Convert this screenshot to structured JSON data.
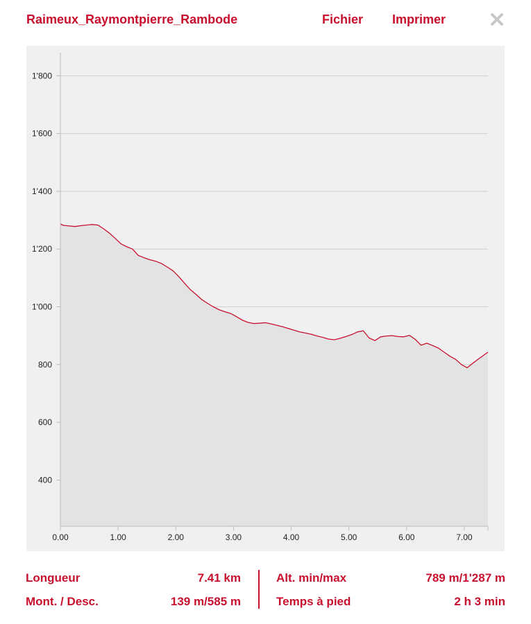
{
  "header": {
    "title": "Raimeux_Raymontpierre_Rambode",
    "menu_file": "Fichier",
    "menu_print": "Imprimer",
    "close_icon": "close-icon"
  },
  "colors": {
    "accent": "#c8102e",
    "panel_bg": "#f0f0f0",
    "area_fill": "#e3e3e3",
    "grid": "#d0d0d0"
  },
  "chart_data": {
    "type": "area",
    "title": "",
    "xlabel": "",
    "ylabel": "",
    "xlim": [
      0,
      7.41
    ],
    "ylim": [
      240,
      1880
    ],
    "grid": true,
    "x_ticks": [
      0,
      1,
      2,
      3,
      4,
      5,
      6,
      7
    ],
    "x_tick_labels": [
      "0.00",
      "1.00",
      "2.00",
      "3.00",
      "4.00",
      "5.00",
      "6.00",
      "7.00"
    ],
    "y_ticks": [
      400,
      600,
      800,
      1000,
      1200,
      1400,
      1600,
      1800
    ],
    "y_tick_labels": [
      "400",
      "600",
      "800",
      "1'000",
      "1'200",
      "1'400",
      "1'600",
      "1'800"
    ],
    "series": [
      {
        "x": [
          0.0,
          0.05,
          0.15,
          0.25,
          0.35,
          0.45,
          0.55,
          0.65,
          0.75,
          0.85,
          0.95,
          1.05,
          1.15,
          1.25,
          1.35,
          1.45,
          1.55,
          1.65,
          1.75,
          1.85,
          1.95,
          2.05,
          2.15,
          2.25,
          2.35,
          2.45,
          2.55,
          2.65,
          2.75,
          2.85,
          2.95,
          3.05,
          3.15,
          3.25,
          3.35,
          3.45,
          3.55,
          3.65,
          3.75,
          3.85,
          3.95,
          4.05,
          4.15,
          4.25,
          4.35,
          4.45,
          4.55,
          4.65,
          4.75,
          4.85,
          4.95,
          5.05,
          5.15,
          5.25,
          5.35,
          5.45,
          5.55,
          5.65,
          5.75,
          5.85,
          5.95,
          6.05,
          6.15,
          6.25,
          6.35,
          6.45,
          6.55,
          6.65,
          6.75,
          6.85,
          6.95,
          7.05,
          7.15,
          7.25,
          7.41
        ],
        "y": [
          1287,
          1282,
          1280,
          1278,
          1281,
          1283,
          1285,
          1283,
          1270,
          1255,
          1237,
          1218,
          1208,
          1200,
          1178,
          1170,
          1163,
          1158,
          1150,
          1138,
          1125,
          1105,
          1082,
          1060,
          1043,
          1025,
          1012,
          1000,
          990,
          983,
          977,
          966,
          954,
          946,
          942,
          943,
          945,
          941,
          936,
          931,
          925,
          919,
          913,
          909,
          905,
          899,
          894,
          888,
          886,
          891,
          897,
          904,
          913,
          917,
          892,
          883,
          896,
          899,
          900,
          897,
          896,
          901,
          887,
          867,
          874,
          866,
          857,
          843,
          829,
          818,
          800,
          789,
          805,
          820,
          843
        ]
      }
    ]
  },
  "stats": {
    "length_label": "Longueur",
    "length_value": "7.41 km",
    "ascent_label": "Mont. / Desc.",
    "ascent_value": "139 m/585 m",
    "alt_label": "Alt. min/max",
    "alt_value": "789 m/1'287 m",
    "time_label": "Temps à pied",
    "time_value": "2 h 3 min"
  }
}
